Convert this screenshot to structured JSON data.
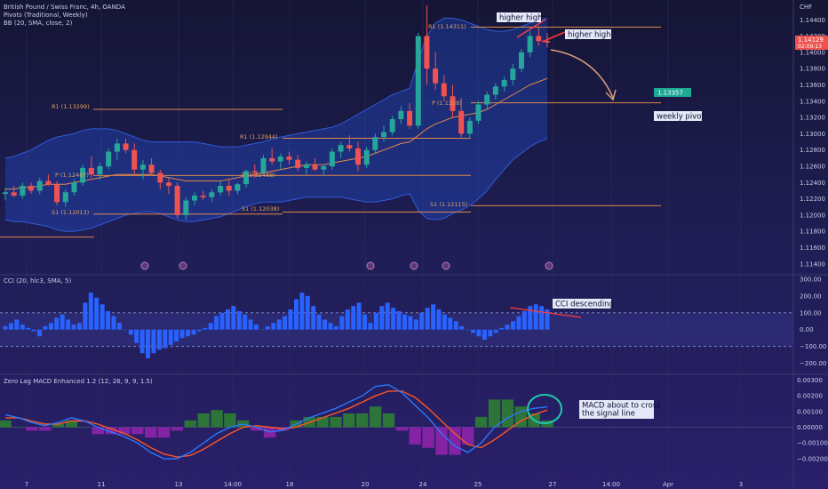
{
  "header": {
    "title": "British Pound / Swiss Franc, 4h, OANDA",
    "pivots": "Pivots (Traditional, Weekly)",
    "bb": "BB (20, SMA, close, 2)",
    "currency": "CHF"
  },
  "price_axis": {
    "ticks": [
      "1.14400",
      "1.14200",
      "1.14000",
      "1.13800",
      "1.13600",
      "1.13400",
      "1.13200",
      "1.13000",
      "1.12800",
      "1.12600",
      "1.12400",
      "1.12200",
      "1.12000",
      "1.11800",
      "1.11600",
      "1.11400"
    ]
  },
  "price_badges": {
    "current": "1.14129",
    "countdown": "02:09:13",
    "target": "1.13357"
  },
  "pivots": {
    "week1": {
      "r1": "R1 (1.13299)",
      "p": "P (1.12487)",
      "s1": "S1 (1.12013)"
    },
    "week2": {
      "r1": "R1 (1.12944)",
      "p": "P (1.12488)",
      "s1": "S1 (1.12038)"
    },
    "week3": {
      "r1": "R1 (1.14311)",
      "p": "P (1.1338)",
      "s1": "S1 (1.12115)"
    }
  },
  "annotations": {
    "higher_high_1": "higher high",
    "higher_high_2": "higher high",
    "weekly_pivot": "weekly pivot",
    "cci_desc": "CCI descending",
    "macd_cross": "MACD about to cross the signal line",
    "macd_cross_line1": "MACD about to cross",
    "macd_cross_line2": "the signal line"
  },
  "cci": {
    "title": "CCI (20, hlc3, SMA, 5)",
    "ticks": [
      "300.00",
      "200.00",
      "100.00",
      "0.00",
      "−100.00",
      "−200.00"
    ]
  },
  "macd": {
    "title": "Zero Lag MACD Enhanced 1.2 (12, 26, 9, 9, 1.5)",
    "ticks": [
      "0.00300",
      "0.00200",
      "0.00100",
      "0.00000",
      "−0.00100",
      "−0.00200"
    ]
  },
  "time_axis": {
    "ticks": [
      "7",
      "11",
      "13",
      "14:00",
      "18",
      "20",
      "24",
      "25",
      "27",
      "14:00",
      "Apr",
      "3"
    ]
  },
  "colors": {
    "up": "#26a69a",
    "down": "#ef5350",
    "bb_fill": "#2962ff",
    "pivot": "#e0884a",
    "cci_bar": "#2962ff",
    "macd_line": "#2979ff",
    "signal_line": "#ff5722",
    "hist_pos": "#2e7d32",
    "hist_neg": "#8e24aa"
  },
  "chart_data": [
    {
      "type": "candlestick",
      "title": "British Pound / Swiss Franc, 4h, OANDA",
      "ylabel": "CHF",
      "ylim": [
        1.113,
        1.146
      ],
      "candles": [
        [
          1.1226,
          1.1234,
          1.1218,
          1.1228
        ],
        [
          1.1228,
          1.1236,
          1.1222,
          1.1224
        ],
        [
          1.1224,
          1.124,
          1.122,
          1.1236
        ],
        [
          1.1236,
          1.124,
          1.1226,
          1.123
        ],
        [
          1.123,
          1.1246,
          1.1226,
          1.1242
        ],
        [
          1.1242,
          1.125,
          1.1236,
          1.1238
        ],
        [
          1.1238,
          1.1242,
          1.1212,
          1.1216
        ],
        [
          1.1216,
          1.1232,
          1.121,
          1.1228
        ],
        [
          1.1228,
          1.1244,
          1.1224,
          1.124
        ],
        [
          1.124,
          1.1262,
          1.1236,
          1.1258
        ],
        [
          1.1258,
          1.1272,
          1.1246,
          1.125
        ],
        [
          1.125,
          1.1264,
          1.1244,
          1.126
        ],
        [
          1.126,
          1.1282,
          1.1256,
          1.1278
        ],
        [
          1.1278,
          1.1294,
          1.1268,
          1.1288
        ],
        [
          1.1288,
          1.1294,
          1.1276,
          1.128
        ],
        [
          1.128,
          1.1288,
          1.125,
          1.1256
        ],
        [
          1.1256,
          1.1268,
          1.1244,
          1.1262
        ],
        [
          1.1262,
          1.127,
          1.1248,
          1.1252
        ],
        [
          1.1252,
          1.1256,
          1.1232,
          1.124
        ],
        [
          1.124,
          1.1246,
          1.1226,
          1.1236
        ],
        [
          1.1236,
          1.124,
          1.1196,
          1.12
        ],
        [
          1.12,
          1.1222,
          1.1194,
          1.1218
        ],
        [
          1.1218,
          1.1228,
          1.1212,
          1.1224
        ],
        [
          1.1224,
          1.123,
          1.1218,
          1.1222
        ],
        [
          1.1222,
          1.1232,
          1.1216,
          1.1228
        ],
        [
          1.1228,
          1.1242,
          1.1224,
          1.1236
        ],
        [
          1.1236,
          1.1244,
          1.1224,
          1.123
        ],
        [
          1.123,
          1.124,
          1.1226,
          1.1238
        ],
        [
          1.1238,
          1.1256,
          1.1234,
          1.1254
        ],
        [
          1.1254,
          1.1262,
          1.1246,
          1.1252
        ],
        [
          1.1252,
          1.1274,
          1.125,
          1.127
        ],
        [
          1.127,
          1.1282,
          1.1262,
          1.1266
        ],
        [
          1.1266,
          1.1276,
          1.1256,
          1.1272
        ],
        [
          1.1272,
          1.1278,
          1.1262,
          1.1268
        ],
        [
          1.1268,
          1.1274,
          1.1254,
          1.1258
        ],
        [
          1.1258,
          1.1266,
          1.125,
          1.1262
        ],
        [
          1.1262,
          1.127,
          1.1254,
          1.1256
        ],
        [
          1.1256,
          1.1262,
          1.1248,
          1.126
        ],
        [
          1.126,
          1.1282,
          1.1256,
          1.1278
        ],
        [
          1.1278,
          1.129,
          1.127,
          1.1286
        ],
        [
          1.1286,
          1.1298,
          1.1278,
          1.1282
        ],
        [
          1.1282,
          1.129,
          1.1254,
          1.1262
        ],
        [
          1.1262,
          1.1284,
          1.1258,
          1.128
        ],
        [
          1.128,
          1.13,
          1.1276,
          1.1296
        ],
        [
          1.1296,
          1.131,
          1.129,
          1.1302
        ],
        [
          1.1302,
          1.1322,
          1.1298,
          1.1318
        ],
        [
          1.1318,
          1.1334,
          1.1312,
          1.1328
        ],
        [
          1.1328,
          1.1338,
          1.1306,
          1.131
        ],
        [
          1.131,
          1.1424,
          1.1306,
          1.142
        ],
        [
          1.142,
          1.1458,
          1.136,
          1.138
        ],
        [
          1.138,
          1.14,
          1.1354,
          1.1362
        ],
        [
          1.1362,
          1.1372,
          1.134,
          1.1346
        ],
        [
          1.1346,
          1.136,
          1.132,
          1.1328
        ],
        [
          1.1328,
          1.1344,
          1.1296,
          1.13
        ],
        [
          1.13,
          1.132,
          1.1294,
          1.1316
        ],
        [
          1.1316,
          1.134,
          1.1312,
          1.1336
        ],
        [
          1.1336,
          1.1352,
          1.133,
          1.1348
        ],
        [
          1.1348,
          1.1362,
          1.1342,
          1.1358
        ],
        [
          1.1358,
          1.137,
          1.1352,
          1.1366
        ],
        [
          1.1366,
          1.1386,
          1.136,
          1.138
        ],
        [
          1.138,
          1.1404,
          1.1376,
          1.14
        ],
        [
          1.14,
          1.1426,
          1.1394,
          1.142
        ],
        [
          1.142,
          1.1432,
          1.1408,
          1.1414
        ],
        [
          1.1414,
          1.1424,
          1.1406,
          1.1412
        ]
      ],
      "bb_upper": [
        1.127,
        1.1272,
        1.1276,
        1.128,
        1.1286,
        1.1292,
        1.1296,
        1.1298,
        1.13,
        1.1304,
        1.1306,
        1.1306,
        1.1306,
        1.1304,
        1.13,
        1.1296,
        1.1292,
        1.129,
        1.129,
        1.129,
        1.129,
        1.129,
        1.129,
        1.1288,
        1.1286,
        1.1284,
        1.1284,
        1.1284,
        1.1286,
        1.1288,
        1.129,
        1.1294,
        1.1296,
        1.1298,
        1.13,
        1.1302,
        1.1304,
        1.1306,
        1.1308,
        1.1312,
        1.1318,
        1.1324,
        1.133,
        1.1336,
        1.1342,
        1.1348,
        1.1352,
        1.1356,
        1.139,
        1.142,
        1.1436,
        1.1442,
        1.1442,
        1.144,
        1.1436,
        1.1432,
        1.1428,
        1.1426,
        1.1426,
        1.1428,
        1.1432,
        1.1436,
        1.144,
        1.1442
      ],
      "bb_middle": [
        1.1232,
        1.1232,
        1.1234,
        1.1234,
        1.1236,
        1.1238,
        1.1238,
        1.1238,
        1.124,
        1.1242,
        1.1244,
        1.1246,
        1.1248,
        1.125,
        1.125,
        1.125,
        1.125,
        1.125,
        1.1248,
        1.1246,
        1.1244,
        1.1242,
        1.1242,
        1.1242,
        1.1242,
        1.1242,
        1.1244,
        1.1246,
        1.1248,
        1.125,
        1.1252,
        1.1254,
        1.1256,
        1.1258,
        1.126,
        1.1262,
        1.1262,
        1.1262,
        1.1264,
        1.1266,
        1.1268,
        1.127,
        1.1272,
        1.1276,
        1.128,
        1.1284,
        1.1288,
        1.129,
        1.1298,
        1.1306,
        1.1312,
        1.1316,
        1.132,
        1.1322,
        1.1324,
        1.1326,
        1.133,
        1.1336,
        1.1342,
        1.1348,
        1.1354,
        1.136,
        1.1364,
        1.1368
      ],
      "bb_lower": [
        1.1194,
        1.1192,
        1.1192,
        1.119,
        1.1188,
        1.1186,
        1.1182,
        1.118,
        1.118,
        1.1182,
        1.1184,
        1.1188,
        1.1192,
        1.1196,
        1.12,
        1.1202,
        1.1204,
        1.1204,
        1.1202,
        1.1198,
        1.1194,
        1.1192,
        1.1192,
        1.1194,
        1.1196,
        1.1198,
        1.1202,
        1.1206,
        1.121,
        1.1214,
        1.1216,
        1.1216,
        1.1216,
        1.1218,
        1.122,
        1.1222,
        1.1222,
        1.1222,
        1.1222,
        1.1222,
        1.122,
        1.1218,
        1.1216,
        1.1216,
        1.1218,
        1.122,
        1.1224,
        1.1226,
        1.1206,
        1.1196,
        1.1194,
        1.1196,
        1.1202,
        1.1206,
        1.1212,
        1.122,
        1.123,
        1.1244,
        1.1256,
        1.1268,
        1.1276,
        1.1284,
        1.129,
        1.1294
      ]
    },
    {
      "type": "bar",
      "title": "CCI (20, hlc3, SMA, 5)",
      "ylim": [
        -260,
        310
      ],
      "values": [
        20,
        40,
        60,
        30,
        10,
        -10,
        -40,
        20,
        40,
        70,
        90,
        60,
        30,
        40,
        160,
        220,
        190,
        150,
        110,
        80,
        40,
        0,
        -30,
        -80,
        -140,
        -170,
        -140,
        -120,
        -110,
        -90,
        -70,
        -50,
        -40,
        -30,
        -10,
        10,
        40,
        80,
        100,
        120,
        140,
        110,
        90,
        60,
        30,
        0,
        20,
        40,
        60,
        80,
        120,
        180,
        220,
        200,
        140,
        90,
        60,
        40,
        20,
        80,
        120,
        140,
        160,
        90,
        40,
        100,
        140,
        160,
        130,
        110,
        90,
        80,
        60,
        100,
        130,
        150,
        120,
        90,
        70,
        50,
        20,
        0,
        -20,
        -40,
        -60,
        -40,
        -20,
        10,
        30,
        50,
        80,
        110,
        140,
        150,
        140,
        120
      ]
    },
    {
      "type": "line",
      "title": "Zero Lag MACD Enhanced 1.2 (12, 26, 9, 9, 1.5)",
      "ylim": [
        -0.0028,
        0.0032
      ],
      "series": [
        {
          "values": [
            0.0008,
            0.0006,
            0.0003,
            0.0001,
            0.0003,
            0.0006,
            0.0004,
            0.0,
            -0.0003,
            -0.0006,
            -0.001,
            -0.0016,
            -0.002,
            -0.002,
            -0.0016,
            -0.001,
            -0.0004,
            0.0,
            0.0002,
            0.0,
            -0.0003,
            -0.0002,
            0.0002,
            0.0006,
            0.0009,
            0.0012,
            0.0016,
            0.002,
            0.0026,
            0.0027,
            0.0022,
            0.0014,
            0.0006,
            -0.0004,
            -0.0012,
            -0.0016,
            -0.001,
            0.0,
            0.0006,
            0.001,
            0.0012,
            0.0013
          ]
        },
        {
          "values": [
            0.0006,
            0.0006,
            0.0004,
            0.0002,
            0.0002,
            0.0004,
            0.0004,
            0.0002,
            -0.0001,
            -0.0004,
            -0.0008,
            -0.0013,
            -0.0017,
            -0.0019,
            -0.0018,
            -0.0014,
            -0.0009,
            -0.0004,
            0.0,
            0.0001,
            0.0,
            -0.0001,
            0.0,
            0.0003,
            0.0006,
            0.0009,
            0.0012,
            0.0016,
            0.002,
            0.0023,
            0.0023,
            0.0019,
            0.0012,
            0.0004,
            -0.0004,
            -0.0011,
            -0.0013,
            -0.0008,
            -0.0002,
            0.0004,
            0.0008,
            0.0011
          ]
        }
      ]
    }
  ]
}
